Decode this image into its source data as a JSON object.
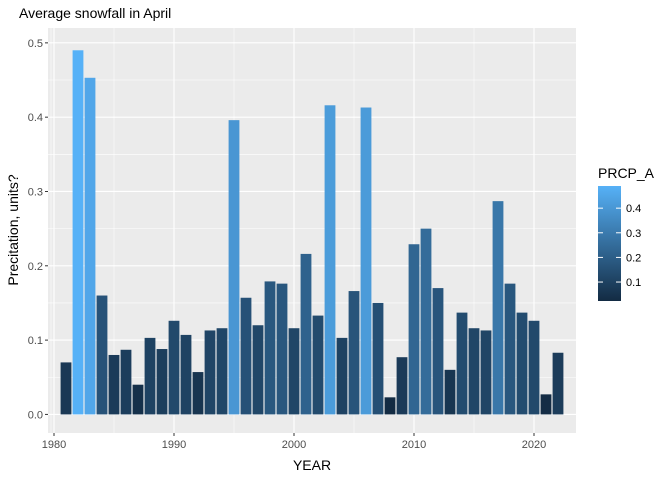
{
  "chart_data": {
    "type": "bar",
    "title": "Average snowfall in April",
    "xlabel": "YEAR",
    "ylabel": "Precitation, units?",
    "xlim": [
      1979.5,
      2023.5
    ],
    "ylim": [
      -0.025,
      0.52
    ],
    "x_ticks": [
      "1980",
      "1990",
      "2000",
      "2010",
      "2020"
    ],
    "y_ticks": [
      "0.0",
      "0.1",
      "0.2",
      "0.3",
      "0.4",
      "0.5"
    ],
    "series": [
      {
        "x": [
          1981,
          1982,
          1983,
          1984,
          1985,
          1986,
          1987,
          1988,
          1989,
          1990,
          1991,
          1992,
          1993,
          1994,
          1995,
          1996,
          1997,
          1998,
          1999,
          2000,
          2001,
          2002,
          2003,
          2004,
          2005,
          2006,
          2007,
          2008,
          2009,
          2010,
          2011,
          2012,
          2013,
          2014,
          2015,
          2016,
          2017,
          2018,
          2019,
          2020,
          2021,
          2022
        ],
        "values": [
          0.07,
          0.49,
          0.453,
          0.16,
          0.08,
          0.087,
          0.04,
          0.103,
          0.088,
          0.126,
          0.107,
          0.057,
          0.113,
          0.116,
          0.396,
          0.157,
          0.12,
          0.179,
          0.176,
          0.116,
          0.216,
          0.133,
          0.416,
          0.103,
          0.166,
          0.413,
          0.15,
          0.023,
          0.077,
          0.229,
          0.25,
          0.17,
          0.06,
          0.137,
          0.116,
          0.113,
          0.287,
          0.176,
          0.137,
          0.126,
          0.027,
          0.083
        ]
      }
    ],
    "legend": {
      "title": "PRCP_A",
      "ticks": [
        "0.1",
        "0.2",
        "0.3",
        "0.4"
      ],
      "placement": "right",
      "color_low": "#132B43",
      "color_high": "#56B1F7"
    },
    "colors": {
      "panel_bg": "#EBEBEB",
      "grid": "#FFFFFF",
      "axis_text": "#4D4D4D"
    },
    "grid": true
  }
}
